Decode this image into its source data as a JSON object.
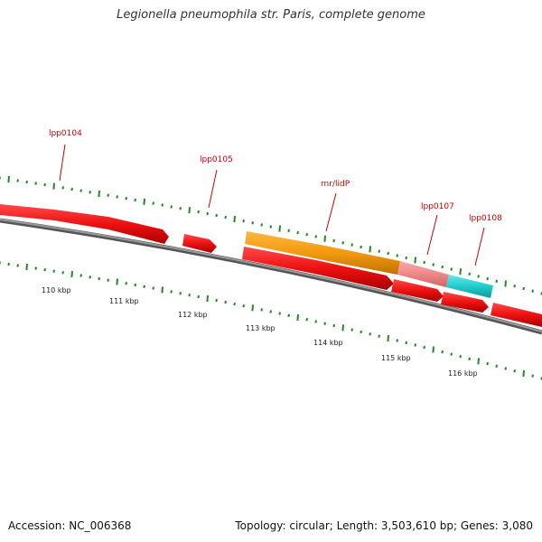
{
  "title": "Legionella pneumophila str. Paris, complete genome",
  "footer": {
    "accession": "Accession: NC_006368",
    "info": "Topology: circular; Length: 3,503,610 bp; Genes: 3,080"
  },
  "colors": {
    "backbone": "#7a7a7a",
    "gene_red": "#ee1111",
    "gene_orange": "#f29a10",
    "gene_pink": "#ee8888",
    "gene_cyan": "#22cccc",
    "tick": "#228822",
    "label": "#cc0000"
  },
  "gene_labels": [
    {
      "id": "lpp0104",
      "text": "lpp0104"
    },
    {
      "id": "lpp0105",
      "text": "lpp0105"
    },
    {
      "id": "rnr",
      "text": "rnr/lidP"
    },
    {
      "id": "lpp0107",
      "text": "lpp0107"
    },
    {
      "id": "lpp0108",
      "text": "lpp0108"
    }
  ],
  "scale_labels": [
    "110 kbp",
    "111 kbp",
    "112 kbp",
    "113 kbp",
    "114 kbp",
    "115 kbp",
    "116 kbp"
  ]
}
